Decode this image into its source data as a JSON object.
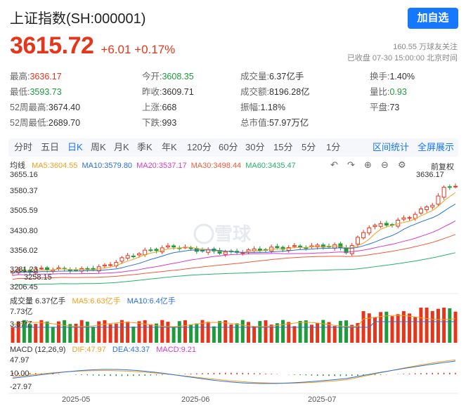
{
  "header": {
    "title": "上证指数(SH:000001)",
    "follow_label": "加自选",
    "price": "3615.72",
    "change": "+6.01 +0.17%",
    "followers": "160.55 万球友关注",
    "status": "已收盘 07-30 15:00:00 北京时间"
  },
  "stats": [
    {
      "label": "最高:",
      "value": "3636.17",
      "color": "red"
    },
    {
      "label": "今开:",
      "value": "3608.35",
      "color": "green"
    },
    {
      "label": "成交量:",
      "value": "6.37亿手",
      "color": "dark"
    },
    {
      "label": "换手:",
      "value": "1.40%",
      "color": "dark"
    },
    {
      "label": "最低:",
      "value": "3593.73",
      "color": "green"
    },
    {
      "label": "昨收:",
      "value": "3609.71",
      "color": "dark"
    },
    {
      "label": "成交额:",
      "value": "8196.28亿",
      "color": "dark"
    },
    {
      "label": "量比:",
      "value": "0.93",
      "color": "green"
    },
    {
      "label": "52周最高:",
      "value": "3674.40",
      "color": "dark"
    },
    {
      "label": "上涨:",
      "value": "668",
      "color": "dark"
    },
    {
      "label": "振幅:",
      "value": "1.18%",
      "color": "dark"
    },
    {
      "label": "平盘:",
      "value": "73",
      "color": "dark"
    },
    {
      "label": "52周最低:",
      "value": "2689.70",
      "color": "dark"
    },
    {
      "label": "下跌:",
      "value": "993",
      "color": "dark"
    },
    {
      "label": "总市值:",
      "value": "57.97万亿",
      "color": "dark"
    }
  ],
  "tabs": [
    "分时",
    "五日",
    "日K",
    "周K",
    "月K",
    "季K",
    "年K",
    "120分",
    "60分",
    "30分",
    "15分",
    "5分",
    "1分"
  ],
  "active_tab": "日K",
  "tab_right": [
    "区间统计",
    "全屏展示"
  ],
  "kline": {
    "ma_type": "均线",
    "ma": [
      {
        "label": "MA5:3604.55",
        "color": "#f0a020"
      },
      {
        "label": "MA10:3579.80",
        "color": "#2a6fdb"
      },
      {
        "label": "MA20:3537.17",
        "color": "#d63ac8"
      },
      {
        "label": "MA30:3498.44",
        "color": "#ef5b3a"
      },
      {
        "label": "MA60:3435.47",
        "color": "#26b36b"
      }
    ],
    "price_mode": "前复权",
    "y_ticks": [
      "3655.16",
      "3580.37",
      "3505.59",
      "3430.80",
      "3356.02",
      "3281.23",
      "3206.45"
    ],
    "high_marker": "3636.17",
    "low_marker": "3258.15",
    "watermark": "雪球"
  },
  "volume": {
    "label": "成交量 6.37亿手",
    "ma5": "MA5:6.63亿手",
    "ma10": "MA10:6.4亿手",
    "y_ticks": [
      "7.73亿",
      "3.87亿"
    ]
  },
  "macd": {
    "label": "MACD (12,26,9)",
    "dif": "DIF:47.97",
    "dea": "DEA:43.37",
    "macd": "MACD:9.21",
    "y_ticks": [
      "47.97",
      "10.00",
      "-27.97"
    ]
  },
  "x_labels": [
    "2025-05",
    "2025-06",
    "2025-07"
  ],
  "colors": {
    "up": "#e5361c",
    "down": "#1e9b3a",
    "accent": "#1677ff"
  }
}
